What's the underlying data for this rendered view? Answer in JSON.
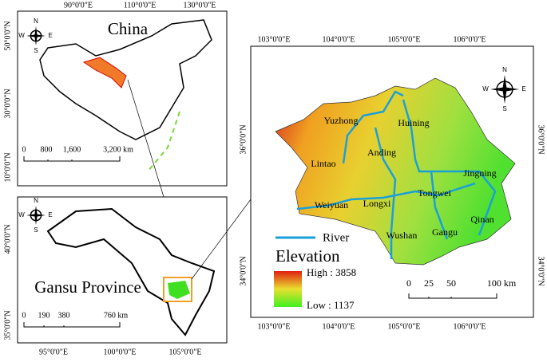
{
  "china_panel": {
    "title": "China",
    "top_ticks": [
      "90°0'0\"E",
      "110°0'0\"E",
      "130°0'0\"E"
    ],
    "left_ticks": [
      "50°0'0\"N",
      "30°0'0\"N",
      "10°0'0\"N"
    ],
    "scale": [
      "0",
      "800",
      "1,600",
      "3,200 km"
    ],
    "compass": [
      "N",
      "W",
      "E",
      "S"
    ]
  },
  "gansu_panel": {
    "title": "Gansu Province",
    "bottom_ticks": [
      "95°0'0\"E",
      "100°0'0\"E",
      "105°0'0\"E"
    ],
    "left_ticks": [
      "40°0'0\"N",
      "35°0'0\"N"
    ],
    "scale": [
      "0",
      "190",
      "380",
      "760 km"
    ],
    "compass": [
      "N",
      "W",
      "E",
      "S"
    ]
  },
  "study_area": {
    "top_ticks": [
      "103°0'0\"E",
      "104°0'0\"E",
      "105°0'0\"E",
      "106°0'0\"E"
    ],
    "bottom_ticks": [
      "103°0'0\"E",
      "104°0'0\"E",
      "105°0'0\"E",
      "106°0'0\"E"
    ],
    "left_ticks": [
      "36°0'0\"N",
      "34°0'0\"N"
    ],
    "right_ticks": [
      "36°0'0\"N",
      "34°0'0\"N"
    ],
    "places": [
      "Yuzhong",
      "Huining",
      "Anding",
      "Lintao",
      "Jingning",
      "Tongwei",
      "Longxi",
      "Weiyuan",
      "Qinan",
      "Wushan",
      "Gangu"
    ],
    "legend": {
      "river": "River",
      "elevation_title": "Elevation",
      "high": "High : 3858",
      "low": "Low : 1137"
    },
    "scale": [
      "0",
      "25",
      "50",
      "100 km"
    ],
    "compass": [
      "N",
      "W",
      "E",
      "S"
    ]
  }
}
